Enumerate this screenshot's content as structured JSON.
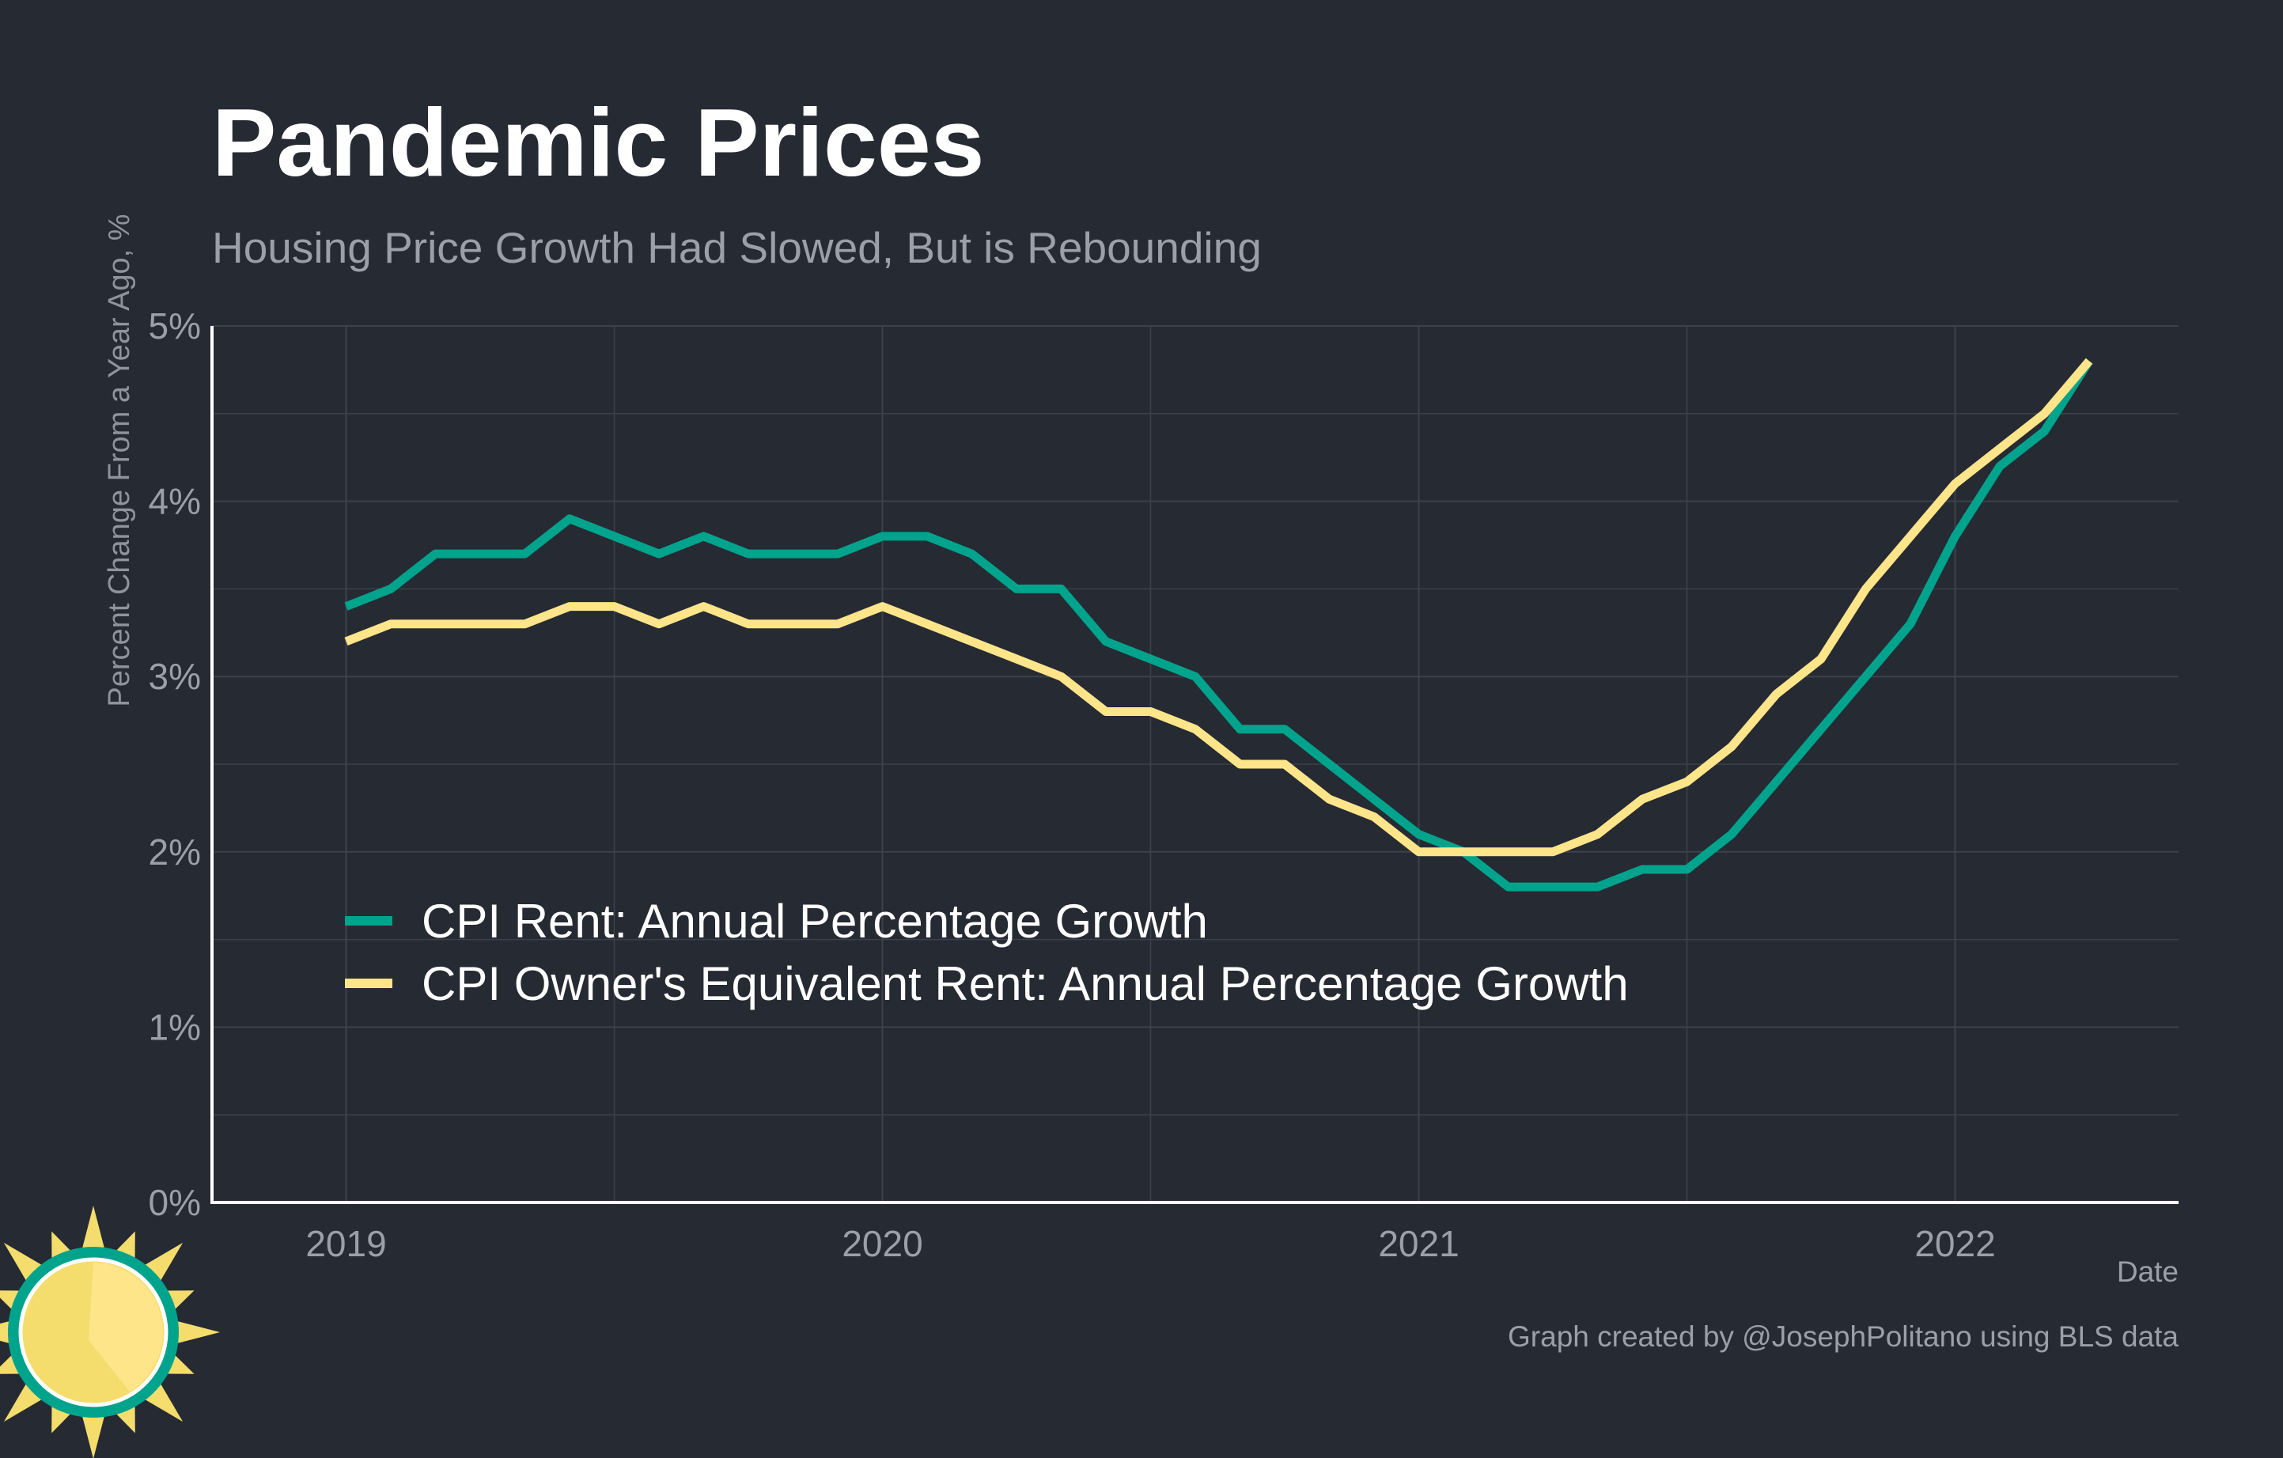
{
  "title": "Pandemic Prices",
  "subtitle": "Housing Price Growth Had Slowed, But is Rebounding",
  "caption": "Graph created by @JosephPolitano using BLS data",
  "colors": {
    "background": "#262a33",
    "grid": "#3c414b",
    "axis": "#ffffff",
    "rent": "#00a38c",
    "oer": "#ffe58a",
    "logo_sun": "#f4dd6c",
    "logo_ring": "#00a38c"
  },
  "logo": {
    "icon": "sun-icon"
  },
  "chart_data": {
    "type": "line",
    "xlabel": "Date",
    "ylabel": "Percent Change From a Year Ago, %",
    "ylim": [
      0,
      5
    ],
    "y_ticks": [
      0,
      1,
      2,
      3,
      4,
      5
    ],
    "y_tick_labels": [
      "0%",
      "1%",
      "2%",
      "3%",
      "4%",
      "5%"
    ],
    "x_ticks": [
      "2019-01",
      "2020-01",
      "2021-01",
      "2022-01"
    ],
    "x_tick_labels": [
      "2019",
      "2020",
      "2021",
      "2022"
    ],
    "xlim": [
      "2018-10",
      "2022-06"
    ],
    "grid": true,
    "legend_position": "inside-bottom-left",
    "x": [
      "2019-01",
      "2019-02",
      "2019-03",
      "2019-04",
      "2019-05",
      "2019-06",
      "2019-07",
      "2019-08",
      "2019-09",
      "2019-10",
      "2019-11",
      "2019-12",
      "2020-01",
      "2020-02",
      "2020-03",
      "2020-04",
      "2020-05",
      "2020-06",
      "2020-07",
      "2020-08",
      "2020-09",
      "2020-10",
      "2020-11",
      "2020-12",
      "2021-01",
      "2021-02",
      "2021-03",
      "2021-04",
      "2021-05",
      "2021-06",
      "2021-07",
      "2021-08",
      "2021-09",
      "2021-10",
      "2021-11",
      "2021-12",
      "2022-01",
      "2022-02",
      "2022-03",
      "2022-04"
    ],
    "series": [
      {
        "name": "CPI Rent: Annual Percentage Growth",
        "color": "#00a38c",
        "values": [
          3.4,
          3.5,
          3.7,
          3.7,
          3.7,
          3.9,
          3.8,
          3.7,
          3.8,
          3.7,
          3.7,
          3.7,
          3.8,
          3.8,
          3.7,
          3.5,
          3.5,
          3.2,
          3.1,
          3.0,
          2.7,
          2.7,
          2.5,
          2.3,
          2.1,
          2.0,
          1.8,
          1.8,
          1.8,
          1.9,
          1.9,
          2.1,
          2.4,
          2.7,
          3.0,
          3.3,
          3.8,
          4.2,
          4.4,
          4.8
        ]
      },
      {
        "name": "CPI Owner's Equivalent Rent: Annual Percentage Growth",
        "color": "#ffe58a",
        "values": [
          3.2,
          3.3,
          3.3,
          3.3,
          3.3,
          3.4,
          3.4,
          3.3,
          3.4,
          3.3,
          3.3,
          3.3,
          3.4,
          3.3,
          3.2,
          3.1,
          3.0,
          2.8,
          2.8,
          2.7,
          2.5,
          2.5,
          2.3,
          2.2,
          2.0,
          2.0,
          2.0,
          2.0,
          2.1,
          2.3,
          2.4,
          2.6,
          2.9,
          3.1,
          3.5,
          3.8,
          4.1,
          4.3,
          4.5,
          4.8
        ]
      }
    ]
  }
}
